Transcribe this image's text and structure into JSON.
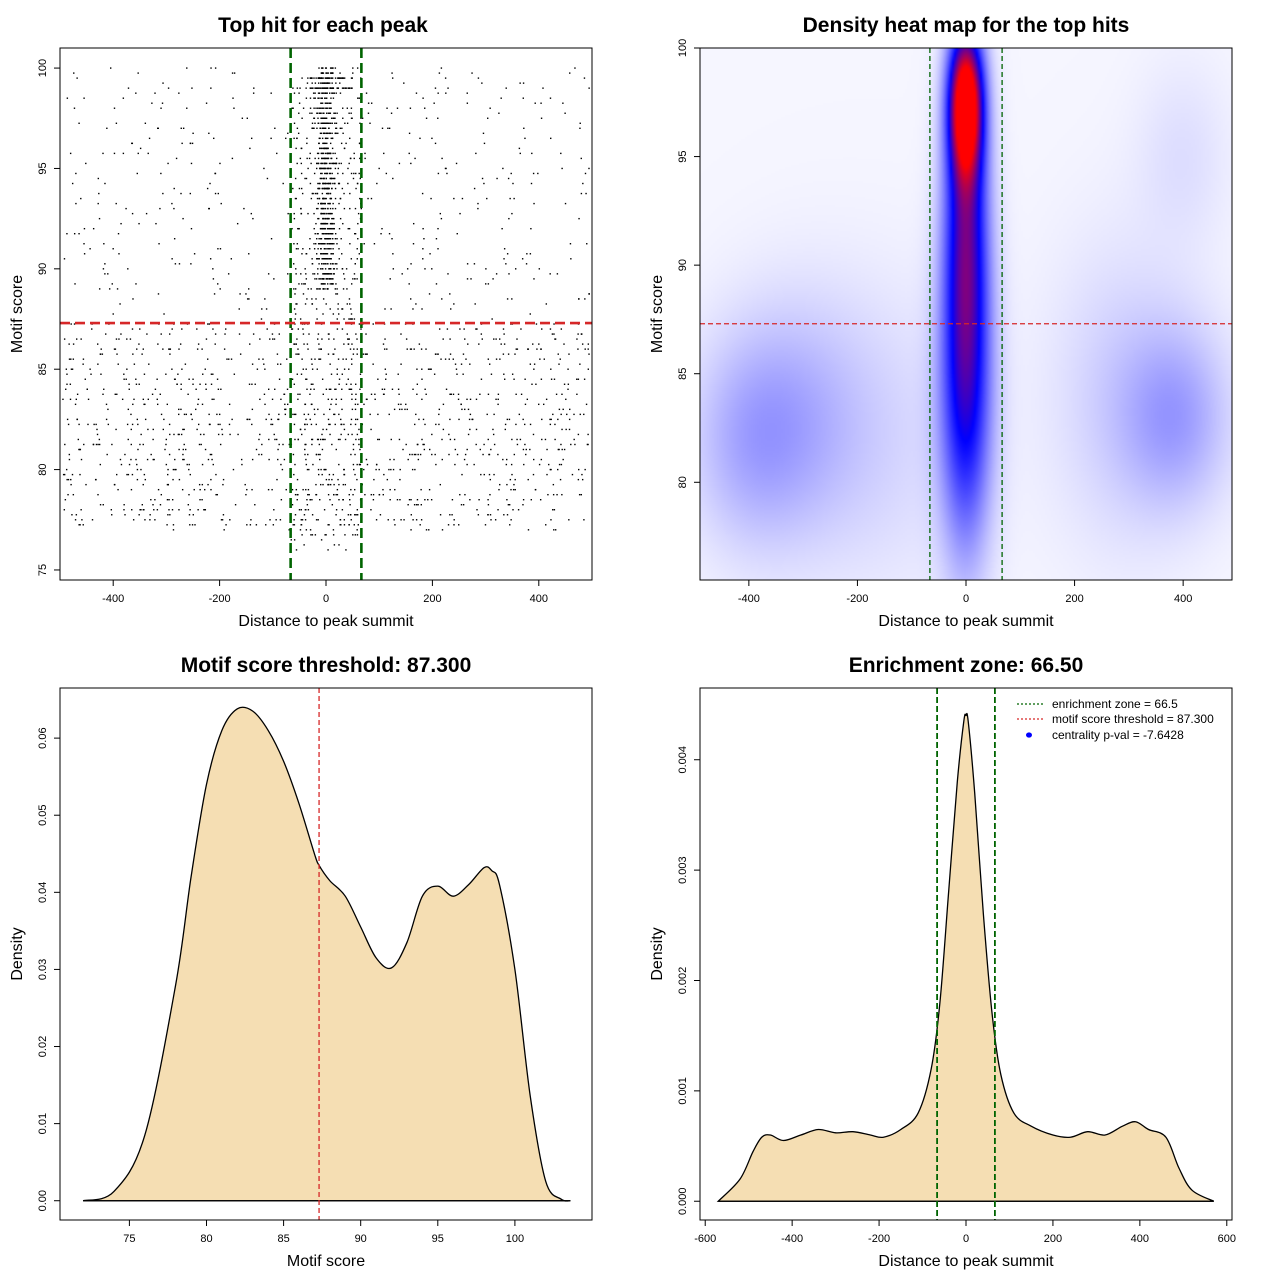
{
  "chart_data": [
    {
      "id": "scatter",
      "type": "scatter",
      "title": "Top hit for each peak",
      "xlabel": "Distance to peak summit",
      "ylabel": "Motif score",
      "xlim": [
        -500,
        500
      ],
      "ylim": [
        74.5,
        101
      ],
      "xticks": [
        -400,
        -200,
        0,
        200,
        400
      ],
      "yticks": [
        75,
        80,
        85,
        90,
        95,
        100
      ],
      "xtick_labels": [
        "-400",
        "-200",
        "0",
        "200",
        "400"
      ],
      "ytick_labels": [
        "75",
        "80",
        "85",
        "90",
        "95",
        "100"
      ],
      "threshold_line": {
        "axis": "y",
        "value": 87.3,
        "color": "#d62728"
      },
      "zone_lines": {
        "axis": "x",
        "values": [
          -66.5,
          66.5
        ],
        "color": "#006400"
      },
      "point_groups": [
        {
          "name": "central-core",
          "x_range": [
            -40,
            40
          ],
          "y_range": [
            89,
            100
          ],
          "count": 700,
          "sd_x": 14
        },
        {
          "name": "central-wide",
          "x_range": [
            -66,
            66
          ],
          "y_range": [
            76,
            100
          ],
          "count": 500
        },
        {
          "name": "background-low",
          "x_range": [
            -495,
            495
          ],
          "y_range": [
            77,
            87.3
          ],
          "count": 1150
        },
        {
          "name": "background-high",
          "x_range": [
            -495,
            495
          ],
          "y_range": [
            87.3,
            100
          ],
          "count": 450
        },
        {
          "name": "top-band",
          "x_range": [
            -30,
            50
          ],
          "y_values": [
            99.5,
            99.0
          ],
          "count": 90
        }
      ]
    },
    {
      "id": "heatmap",
      "type": "heatmap",
      "title": "Density heat map for the top hits",
      "xlabel": "Distance to peak summit",
      "ylabel": "Motif score",
      "xlim": [
        -490,
        490
      ],
      "ylim": [
        75.5,
        100
      ],
      "xticks": [
        -400,
        -200,
        0,
        200,
        400
      ],
      "yticks": [
        80,
        85,
        90,
        95,
        100
      ],
      "xtick_labels": [
        "-400",
        "-200",
        "0",
        "200",
        "400"
      ],
      "ytick_labels": [
        "80",
        "85",
        "90",
        "95",
        "100"
      ],
      "threshold_line": {
        "axis": "y",
        "value": 87.3,
        "color": "#d62728"
      },
      "zone_lines": {
        "axis": "x",
        "values": [
          -66.5,
          66.5
        ],
        "color": "#006400"
      },
      "color_scale": [
        "#ffffff",
        "#0000ff",
        "#ff0000"
      ],
      "hotspots": [
        {
          "x": 0,
          "y": 97.5,
          "sx": 22,
          "sy": 2.3,
          "w": 1.05
        },
        {
          "x": 0,
          "y": 92.0,
          "sx": 28,
          "sy": 4.5,
          "w": 0.55
        },
        {
          "x": 0,
          "y": 84.0,
          "sx": 33,
          "sy": 5.0,
          "w": 0.5
        },
        {
          "x": -400,
          "y": 82,
          "sx": 80,
          "sy": 3.5,
          "w": 0.14
        },
        {
          "x": -300,
          "y": 83,
          "sx": 90,
          "sy": 4,
          "w": 0.1
        },
        {
          "x": 390,
          "y": 83,
          "sx": 70,
          "sy": 3,
          "w": 0.17
        },
        {
          "x": 280,
          "y": 84,
          "sx": 90,
          "sy": 5,
          "w": 0.08
        },
        {
          "x": 400,
          "y": 95,
          "sx": 60,
          "sy": 3,
          "w": 0.05
        },
        {
          "x": -150,
          "y": 82,
          "sx": 120,
          "sy": 5,
          "w": 0.06
        }
      ]
    },
    {
      "id": "score-density",
      "type": "area",
      "title": "Motif score threshold: 87.300",
      "xlabel": "Motif score",
      "ylabel": "Density",
      "xlim": [
        70.5,
        105
      ],
      "ylim": [
        -0.0025,
        0.0665
      ],
      "xticks": [
        75,
        80,
        85,
        90,
        95,
        100
      ],
      "yticks": [
        0,
        0.01,
        0.02,
        0.03,
        0.04,
        0.05,
        0.06
      ],
      "xtick_labels": [
        "75",
        "80",
        "85",
        "90",
        "95",
        "100"
      ],
      "ytick_labels": [
        "0.00",
        "0.01",
        "0.02",
        "0.03",
        "0.04",
        "0.05",
        "0.06"
      ],
      "fill": "#f5deb3",
      "threshold_line": {
        "axis": "x",
        "value": 87.3,
        "color": "#d62728"
      },
      "x": [
        72,
        74,
        76,
        78,
        79,
        80,
        81,
        82,
        83,
        84,
        85,
        86,
        87,
        87.3,
        88,
        89,
        90,
        91,
        92,
        93,
        94,
        95,
        96,
        97,
        98,
        98.5,
        99,
        100,
        101,
        102,
        103,
        103.6
      ],
      "values": [
        0.0,
        0.0012,
        0.0085,
        0.028,
        0.042,
        0.054,
        0.061,
        0.0638,
        0.0635,
        0.061,
        0.057,
        0.0515,
        0.045,
        0.0435,
        0.0415,
        0.0395,
        0.0355,
        0.0315,
        0.0302,
        0.0335,
        0.0395,
        0.0408,
        0.0395,
        0.041,
        0.0432,
        0.0428,
        0.041,
        0.03,
        0.0135,
        0.0025,
        0.0002,
        0.0
      ]
    },
    {
      "id": "distance-density",
      "type": "area",
      "title": "Enrichment zone: 66.50",
      "xlabel": "Distance to peak summit",
      "ylabel": "Density",
      "xlim": [
        -612,
        612
      ],
      "ylim": [
        -0.00017,
        0.00465
      ],
      "xticks": [
        -600,
        -400,
        -200,
        0,
        200,
        400,
        600
      ],
      "yticks": [
        0,
        0.001,
        0.002,
        0.003,
        0.004
      ],
      "xtick_labels": [
        "-600",
        "-400",
        "-200",
        "0",
        "200",
        "400",
        "600"
      ],
      "ytick_labels": [
        "0.000",
        "0.001",
        "0.002",
        "0.003",
        "0.004"
      ],
      "fill": "#f5deb3",
      "zone_lines": {
        "axis": "x",
        "values": [
          -66.5,
          66.5
        ],
        "color": "#006400"
      },
      "x": [
        -570,
        -520,
        -490,
        -470,
        -450,
        -420,
        -380,
        -340,
        -300,
        -260,
        -220,
        -190,
        -150,
        -110,
        -80,
        -60,
        -40,
        -20,
        -5,
        0,
        5,
        20,
        40,
        60,
        80,
        110,
        150,
        200,
        240,
        280,
        320,
        360,
        390,
        420,
        460,
        490,
        520,
        570
      ],
      "values": [
        0.0,
        0.0002,
        0.00045,
        0.00058,
        0.0006,
        0.00055,
        0.0006,
        0.00065,
        0.00062,
        0.00063,
        0.0006,
        0.00058,
        0.00065,
        0.0008,
        0.0012,
        0.0018,
        0.0028,
        0.0038,
        0.00435,
        0.0044,
        0.00435,
        0.0037,
        0.0026,
        0.0017,
        0.00115,
        0.0008,
        0.00068,
        0.0006,
        0.00058,
        0.00063,
        0.0006,
        0.00068,
        0.00072,
        0.00065,
        0.00058,
        0.0003,
        0.0001,
        0.0
      ],
      "legend": [
        {
          "label": "enrichment zone = 66.5",
          "style": "dotted-line",
          "color": "#006400"
        },
        {
          "label": "motif score threshold = 87.300",
          "style": "dotted-line",
          "color": "#d62728"
        },
        {
          "label": "centrality p-val = -7.6428",
          "style": "point",
          "color": "#0000ff"
        }
      ]
    }
  ]
}
